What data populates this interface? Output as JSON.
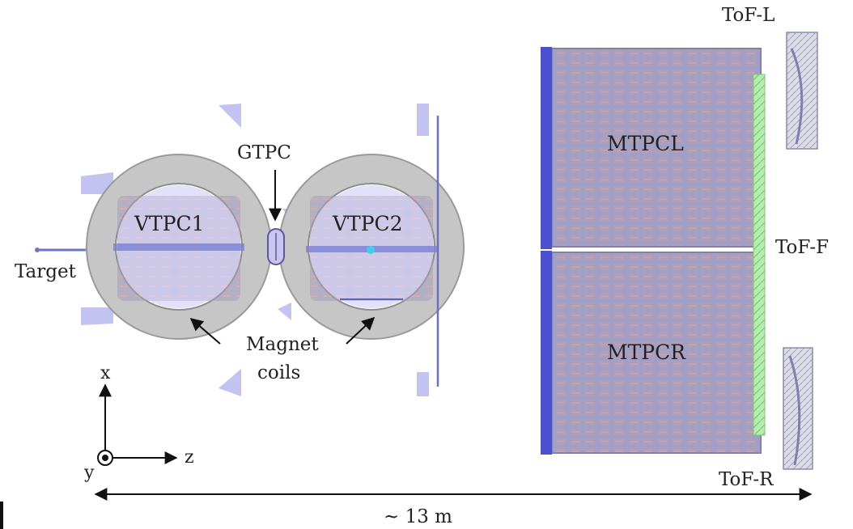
{
  "labels": {
    "target": "Target",
    "vtpc1": "VTPC1",
    "vtpc2": "VTPC2",
    "gtpc": "GTPC",
    "magnet_line1": "Magnet",
    "magnet_line2": "coils",
    "mtpcl": "MTPCL",
    "mtpcr": "MTPCR",
    "tof_l": "ToF-L",
    "tof_f": "ToF-F",
    "tof_r": "ToF-R",
    "axis_x": "x",
    "axis_y": "y",
    "axis_z": "z",
    "scale": "~ 13 m"
  },
  "colors": {
    "ring": "#c4c4c4",
    "tpc_inner": "#c9c6ee",
    "panel": "#9c9cc4",
    "cell": "#c79a9a",
    "frame_blue": "#4046c8",
    "tof_f_green": "#a8e6a0",
    "tof_side": "#d6d6e2"
  }
}
